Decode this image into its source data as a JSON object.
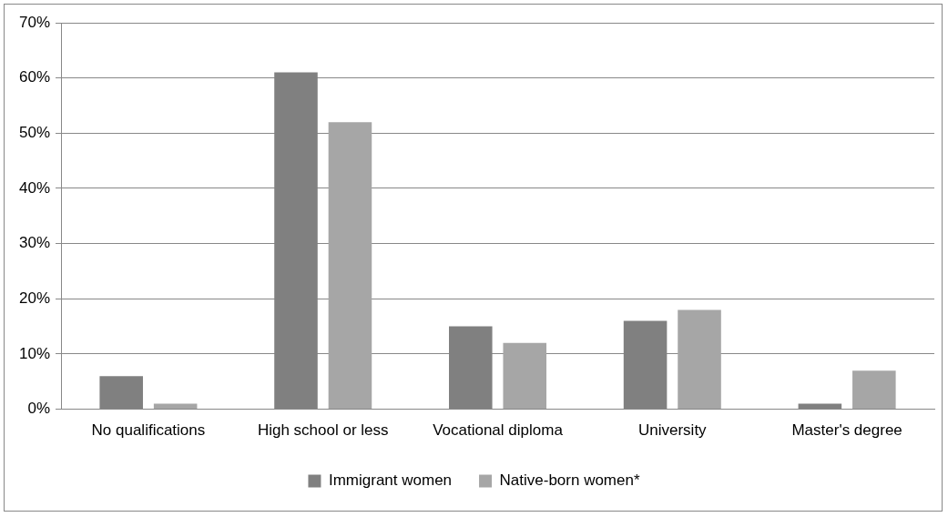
{
  "chart_data": {
    "type": "bar",
    "categories": [
      "No qualifications",
      "High school or less",
      "Vocational diploma",
      "University",
      "Master's degree"
    ],
    "series": [
      {
        "name": "Immigrant women",
        "color": "#808080",
        "values": [
          6,
          61,
          15,
          16,
          1
        ]
      },
      {
        "name": "Native-born women*",
        "color": "#a6a6a6",
        "values": [
          1,
          52,
          12,
          18,
          7
        ]
      }
    ],
    "ylim": [
      0,
      70
    ],
    "yticks": [
      {
        "value": 0,
        "label": "0%"
      },
      {
        "value": 10,
        "label": "10%"
      },
      {
        "value": 20,
        "label": "20%"
      },
      {
        "value": 30,
        "label": "30%"
      },
      {
        "value": 40,
        "label": "40%"
      },
      {
        "value": 50,
        "label": "50%"
      },
      {
        "value": 60,
        "label": "60%"
      },
      {
        "value": 70,
        "label": "70%"
      }
    ],
    "grid": "y",
    "legend": "bottom"
  }
}
